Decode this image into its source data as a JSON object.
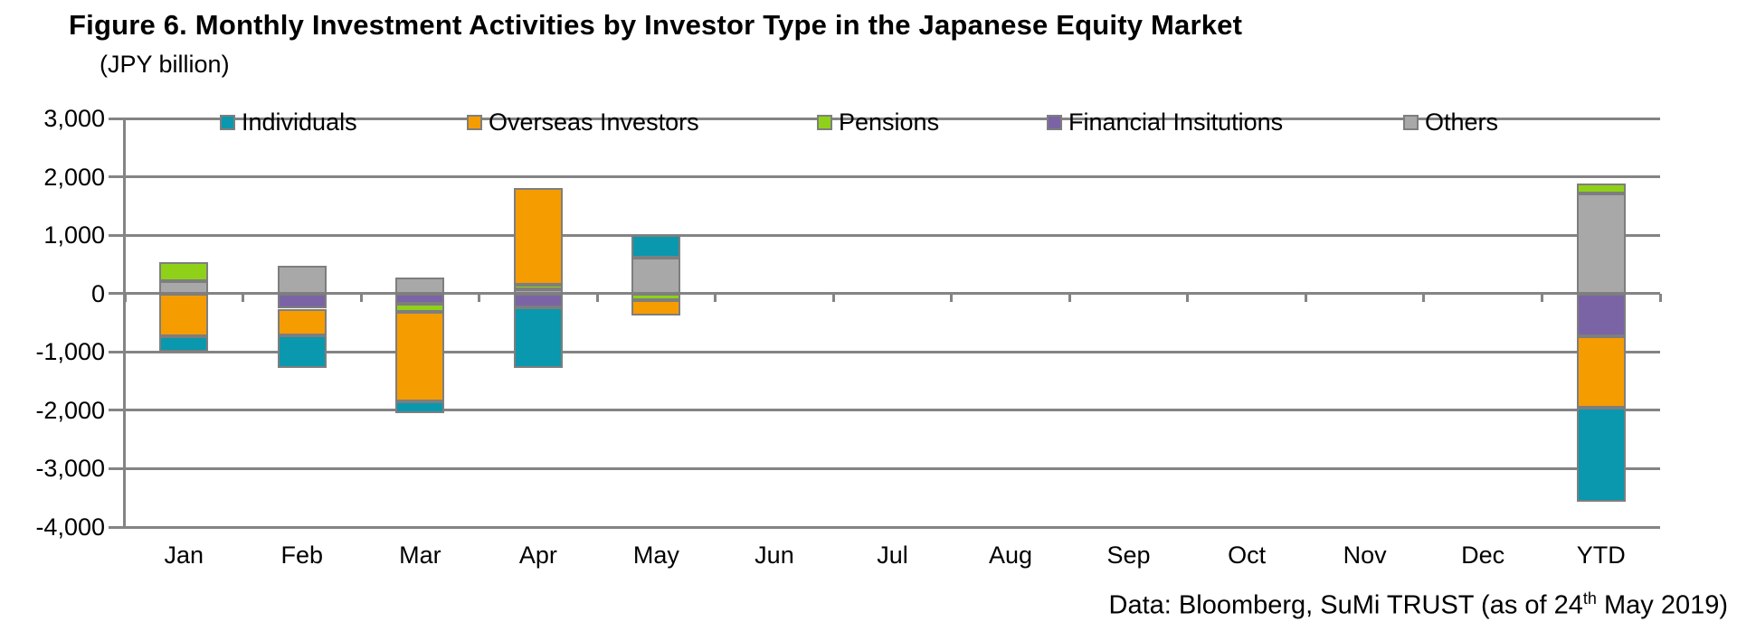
{
  "title": "Figure 6. Monthly Investment Activities by Investor Type in the Japanese Equity Market",
  "unit_label": "(JPY billion)",
  "footer": {
    "prefix": "Data: Bloomberg, SuMi TRUST (as of 24",
    "superscript": "th",
    "suffix": " May 2019)"
  },
  "colors": {
    "individuals": "#0998AE",
    "overseas": "#F59C00",
    "pensions": "#8FD118",
    "financial": "#7B64A5",
    "others": "#A8A8A8",
    "segment_border": "#7E7E7E",
    "gridline": "#848484",
    "text": "#000000"
  },
  "chart_data": {
    "type": "bar",
    "stacked": true,
    "title": "Figure 6. Monthly Investment Activities by Investor Type in the Japanese Equity Market",
    "ylabel": "(JPY billion)",
    "categories": [
      "Jan",
      "Feb",
      "Mar",
      "Apr",
      "May",
      "Jun",
      "Jul",
      "Aug",
      "Sep",
      "Oct",
      "Nov",
      "Dec",
      "YTD"
    ],
    "series": [
      {
        "name": "Individuals",
        "color_key": "individuals",
        "values": [
          -250,
          -570,
          -200,
          -1050,
          380,
          0,
          0,
          0,
          0,
          0,
          0,
          0,
          -1610
        ]
      },
      {
        "name": "Overseas Investors",
        "color_key": "overseas",
        "values": [
          -740,
          -450,
          -1540,
          1650,
          -260,
          0,
          0,
          0,
          0,
          0,
          0,
          0,
          -1220
        ]
      },
      {
        "name": "Pensions",
        "color_key": "pensions",
        "values": [
          310,
          0,
          -140,
          70,
          -110,
          0,
          0,
          0,
          0,
          0,
          0,
          0,
          170
        ]
      },
      {
        "name": "Financial Insitutions",
        "color_key": "financial",
        "values": [
          0,
          -260,
          -170,
          -230,
          0,
          0,
          0,
          0,
          0,
          0,
          0,
          0,
          -740
        ]
      },
      {
        "name": "Others",
        "color_key": "others",
        "values": [
          220,
          480,
          280,
          80,
          620,
          0,
          0,
          0,
          0,
          0,
          0,
          0,
          1720
        ]
      }
    ],
    "stack_order_from_axis": [
      "Others",
      "Financial Insitutions",
      "Pensions",
      "Overseas Investors",
      "Individuals"
    ],
    "ylim": [
      -4000,
      3000
    ],
    "ytick_step": 1000,
    "yticklabels": [
      "3,000",
      "2,000",
      "1,000",
      "0",
      "-1,000",
      "-2,000",
      "-3,000",
      "-4,000"
    ],
    "grid": true,
    "legend_position": "top-inside",
    "legend": [
      {
        "label": "Individuals",
        "color_key": "individuals"
      },
      {
        "label": "Overseas Investors",
        "color_key": "overseas"
      },
      {
        "label": "Pensions",
        "color_key": "pensions"
      },
      {
        "label": "Financial Insitutions",
        "color_key": "financial"
      },
      {
        "label": "Others",
        "color_key": "others"
      }
    ]
  }
}
